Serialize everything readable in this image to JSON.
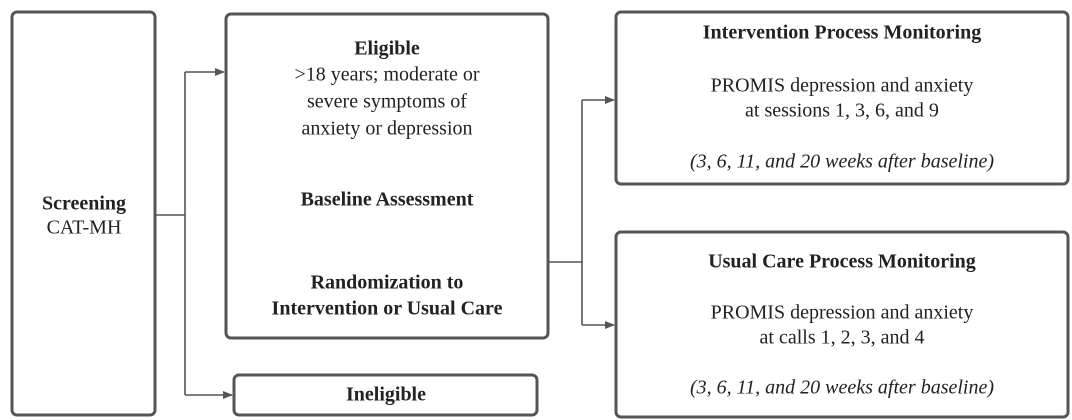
{
  "nodes": [
    {
      "title": "Screening",
      "lines": [
        "CAT-MH"
      ]
    },
    {
      "title": "Eligible",
      "lines": [
        ">18 years; moderate or",
        "severe symptoms of",
        "anxiety or depression"
      ]
    },
    {
      "title": "Baseline Assessment"
    },
    {
      "title": "Randomization to",
      "lines": [
        "Intervention or Usual Care"
      ]
    },
    {
      "title": "Ineligible"
    },
    {
      "title": "Intervention Process Monitoring",
      "lines": [
        "PROMIS depression and anxiety",
        "at sessions 1, 3, 6, and 9"
      ],
      "note": "(3, 6, 11, and 20 weeks after baseline)"
    },
    {
      "title": "Usual Care Process Monitoring",
      "lines": [
        "PROMIS depression and anxiety",
        "at calls 1, 2, 3, and 4"
      ],
      "note": "(3, 6, 11, and 20 weeks after baseline)"
    }
  ]
}
